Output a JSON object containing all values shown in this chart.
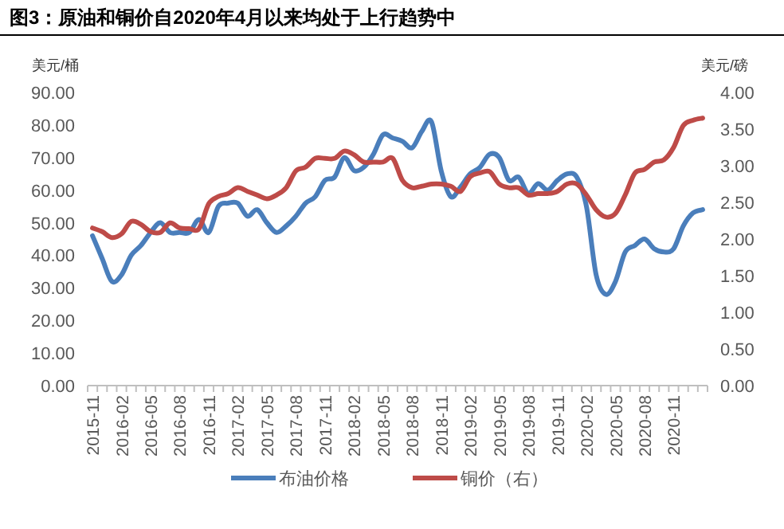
{
  "chart_data": {
    "type": "line",
    "title": "图3：原油和铜价自2020年4月以来均处于上行趋势中",
    "ylabel": "美元/桶",
    "y2label": "美元/磅",
    "categories": [
      "2015-11",
      null,
      null,
      "2016-02",
      null,
      null,
      "2016-05",
      null,
      null,
      "2016-08",
      null,
      null,
      "2016-11",
      null,
      null,
      "2017-02",
      null,
      null,
      "2017-05",
      null,
      null,
      "2017-08",
      null,
      null,
      "2017-11",
      null,
      null,
      "2018-02",
      null,
      null,
      "2018-05",
      null,
      null,
      "2018-08",
      null,
      null,
      "2018-11",
      null,
      null,
      "2019-02",
      null,
      null,
      "2019-05",
      null,
      null,
      "2019-08",
      null,
      null,
      "2019-11",
      null,
      null,
      "2020-02",
      null,
      null,
      "2020-05",
      null,
      null,
      "2020-08",
      null,
      null,
      "2020-11",
      null,
      null,
      null
    ],
    "series": [
      {
        "name": "布油价格",
        "color": "#4a7ebb",
        "values": [
          46,
          39,
          32,
          34,
          40,
          43,
          47,
          50,
          47,
          47,
          47,
          51,
          47,
          55,
          56,
          56,
          52,
          54,
          50,
          47,
          49,
          52,
          56,
          58,
          63,
          64,
          70,
          66,
          67,
          71,
          77,
          76,
          75,
          73,
          78,
          81,
          66,
          58,
          61,
          65,
          67,
          71,
          70,
          63,
          64,
          59,
          62,
          60,
          63,
          65,
          64,
          55,
          34,
          28,
          32,
          41,
          43,
          45,
          42,
          41,
          42,
          49,
          53,
          54
        ]
      },
      {
        "name": "铜价（右）",
        "color": "#be4b48",
        "axis": "y2",
        "values": [
          2.15,
          2.1,
          2.02,
          2.07,
          2.24,
          2.2,
          2.1,
          2.09,
          2.22,
          2.15,
          2.14,
          2.14,
          2.48,
          2.58,
          2.62,
          2.7,
          2.65,
          2.6,
          2.55,
          2.6,
          2.7,
          2.93,
          2.98,
          3.1,
          3.1,
          3.1,
          3.2,
          3.15,
          3.05,
          3.05,
          3.05,
          3.1,
          2.8,
          2.7,
          2.72,
          2.75,
          2.75,
          2.72,
          2.65,
          2.85,
          2.9,
          2.92,
          2.75,
          2.7,
          2.7,
          2.6,
          2.62,
          2.62,
          2.65,
          2.75,
          2.75,
          2.6,
          2.4,
          2.3,
          2.35,
          2.6,
          2.9,
          2.95,
          3.05,
          3.08,
          3.25,
          3.55,
          3.62,
          3.65
        ]
      }
    ],
    "ylim": [
      0,
      90
    ],
    "yticks": [
      {
        "value": 0,
        "label": "0.00"
      },
      {
        "value": 10,
        "label": "10.00"
      },
      {
        "value": 20,
        "label": "20.00"
      },
      {
        "value": 30,
        "label": "30.00"
      },
      {
        "value": 40,
        "label": "40.00"
      },
      {
        "value": 50,
        "label": "50.00"
      },
      {
        "value": 60,
        "label": "60.00"
      },
      {
        "value": 70,
        "label": "70.00"
      },
      {
        "value": 80,
        "label": "80.00"
      },
      {
        "value": 90,
        "label": "90.00"
      }
    ],
    "y2lim": [
      0,
      4
    ],
    "y2ticks": [
      {
        "value": 0,
        "label": "0.00"
      },
      {
        "value": 0.5,
        "label": "0.50"
      },
      {
        "value": 1,
        "label": "1.00"
      },
      {
        "value": 1.5,
        "label": "1.50"
      },
      {
        "value": 2,
        "label": "2.00"
      },
      {
        "value": 2.5,
        "label": "2.50"
      },
      {
        "value": 3,
        "label": "3.00"
      },
      {
        "value": 3.5,
        "label": "3.50"
      },
      {
        "value": 4,
        "label": "4.00"
      }
    ],
    "grid": false,
    "legend": "bottom",
    "line_style": "solid"
  }
}
